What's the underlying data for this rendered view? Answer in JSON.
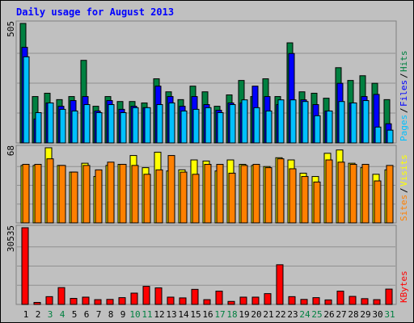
{
  "title": "Daily usage for August 2013",
  "colors": {
    "background": "#c0c0c0",
    "title": "#0000ff",
    "hits": "#008040",
    "files": "#0000ff",
    "pages": "#00c0ff",
    "visits": "#ffff00",
    "sites": "#ff8000",
    "kbytes": "#ff0000",
    "weekend_label": "#008040",
    "weekday_label": "#000000"
  },
  "chart_data": [
    {
      "type": "bar",
      "name": "hits-files-pages",
      "ymax_label": "505",
      "ylim": [
        0,
        505
      ],
      "legend": [
        {
          "key": "pages",
          "label": "Pages"
        },
        {
          "key": "files",
          "label": "Files"
        },
        {
          "key": "hits",
          "label": "Hits"
        }
      ],
      "categories": [
        "1",
        "2",
        "3",
        "4",
        "5",
        "6",
        "7",
        "8",
        "9",
        "10",
        "11",
        "12",
        "13",
        "14",
        "15",
        "16",
        "17",
        "18",
        "19",
        "20",
        "21",
        "22",
        "23",
        "24",
        "25",
        "26",
        "27",
        "28",
        "29",
        "30",
        "31"
      ],
      "series": [
        {
          "key": "hits",
          "values": [
            505,
            196,
            210,
            183,
            196,
            349,
            155,
            196,
            175,
            175,
            169,
            271,
            216,
            183,
            240,
            216,
            155,
            203,
            264,
            196,
            271,
            196,
            423,
            216,
            210,
            189,
            318,
            264,
            284,
            252,
            183
          ]
        },
        {
          "key": "files",
          "values": [
            404,
            101,
            169,
            155,
            179,
            196,
            135,
            179,
            142,
            155,
            149,
            240,
            196,
            155,
            196,
            162,
            138,
            169,
            169,
            240,
            196,
            162,
            378,
            182,
            162,
            135,
            252,
            169,
            196,
            205,
            81
          ]
        },
        {
          "key": "pages",
          "values": [
            364,
            128,
            169,
            142,
            135,
            162,
            128,
            162,
            128,
            149,
            149,
            162,
            169,
            135,
            142,
            149,
            128,
            162,
            182,
            149,
            135,
            182,
            182,
            175,
            115,
            135,
            175,
            169,
            179,
            67,
            54
          ]
        }
      ]
    },
    {
      "type": "bar",
      "name": "visits-sites",
      "ymax_label": "68",
      "ylim": [
        0,
        68
      ],
      "legend": [
        {
          "key": "sites",
          "label": "Sites"
        },
        {
          "key": "visits",
          "label": "Visits"
        }
      ],
      "categories": [
        "1",
        "2",
        "3",
        "4",
        "5",
        "6",
        "7",
        "8",
        "9",
        "10",
        "11",
        "12",
        "13",
        "14",
        "15",
        "16",
        "17",
        "18",
        "19",
        "20",
        "21",
        "22",
        "23",
        "24",
        "25",
        "26",
        "27",
        "28",
        "29",
        "30",
        "31"
      ],
      "series": [
        {
          "key": "visits",
          "values": [
            52,
            52,
            68,
            52,
            46,
            54,
            42,
            52,
            53,
            61,
            50,
            64,
            47,
            48,
            57,
            56,
            47,
            57,
            53,
            52,
            51,
            59,
            57,
            45,
            42,
            63,
            66,
            54,
            50,
            44,
            48
          ]
        },
        {
          "key": "sites",
          "values": [
            53,
            53,
            58,
            52,
            46,
            52,
            48,
            55,
            53,
            52,
            44,
            48,
            61,
            46,
            44,
            53,
            53,
            45,
            52,
            53,
            50,
            58,
            49,
            42,
            37,
            57,
            55,
            53,
            53,
            38,
            52
          ]
        }
      ]
    },
    {
      "type": "bar",
      "name": "kbytes",
      "ymax_label": "30535",
      "ylim": [
        0,
        30535
      ],
      "legend": [
        {
          "key": "kbytes",
          "label": "KBytes"
        }
      ],
      "categories": [
        "1",
        "2",
        "3",
        "4",
        "5",
        "6",
        "7",
        "8",
        "9",
        "10",
        "11",
        "12",
        "13",
        "14",
        "15",
        "16",
        "17",
        "18",
        "19",
        "20",
        "21",
        "22",
        "23",
        "24",
        "25",
        "26",
        "27",
        "28",
        "29",
        "30",
        "31"
      ],
      "series": [
        {
          "key": "kbytes",
          "values": [
            30535,
            800,
            3100,
            6700,
            2400,
            2900,
            1900,
            2000,
            2700,
            4500,
            7200,
            6600,
            2900,
            2600,
            6000,
            1900,
            5300,
            1200,
            2900,
            2900,
            4300,
            15800,
            3100,
            2000,
            2700,
            1800,
            5300,
            3200,
            2300,
            1900,
            6100
          ]
        }
      ]
    }
  ],
  "weekend_days": [
    "3",
    "4",
    "10",
    "11",
    "17",
    "18",
    "24",
    "25",
    "31"
  ]
}
